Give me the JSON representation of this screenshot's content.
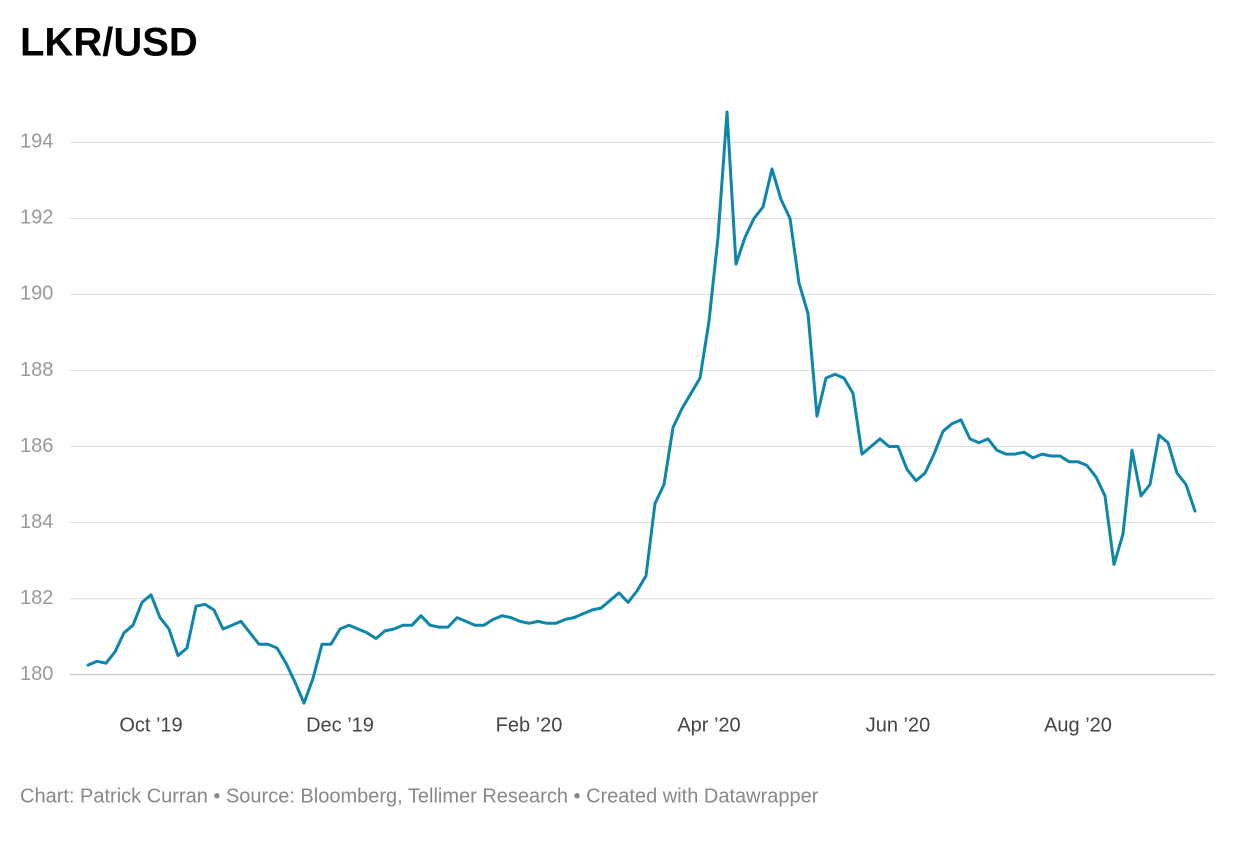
{
  "chart_data": {
    "type": "line",
    "title": "LKR/USD",
    "source": "Chart: Patrick Curran • Source: Bloomberg, Tellimer Research • Created with Datawrapper",
    "color": "#0e86ab",
    "grid": true,
    "ylim": [
      179.2,
      195.3
    ],
    "yticks": [
      180,
      182,
      184,
      186,
      188,
      190,
      192,
      194
    ],
    "categories": [
      null,
      null,
      null,
      null,
      null,
      null,
      null,
      "Oct ’19",
      null,
      null,
      null,
      null,
      null,
      null,
      null,
      null,
      null,
      null,
      null,
      null,
      null,
      null,
      null,
      null,
      null,
      null,
      null,
      null,
      "Dec ’19",
      null,
      null,
      null,
      null,
      null,
      null,
      null,
      null,
      null,
      null,
      null,
      null,
      null,
      null,
      null,
      null,
      null,
      null,
      null,
      null,
      "Feb ’20",
      null,
      null,
      null,
      null,
      null,
      null,
      null,
      null,
      null,
      null,
      null,
      null,
      null,
      null,
      null,
      null,
      null,
      null,
      null,
      "Apr ’20",
      null,
      null,
      null,
      null,
      null,
      null,
      null,
      null,
      null,
      null,
      null,
      null,
      null,
      null,
      null,
      null,
      null,
      null,
      null,
      null,
      "Jun ’20",
      null,
      null,
      null,
      null,
      null,
      null,
      null,
      null,
      null,
      null,
      null,
      null,
      null,
      null,
      null,
      null,
      null,
      null,
      null,
      "Aug ’20",
      null,
      null,
      null,
      null,
      null,
      null,
      null,
      null,
      null,
      null,
      null,
      null,
      null
    ],
    "values": [
      180.25,
      180.35,
      180.3,
      180.6,
      181.1,
      181.3,
      181.9,
      182.1,
      181.5,
      181.2,
      180.5,
      180.7,
      181.8,
      181.85,
      181.7,
      181.2,
      181.3,
      181.4,
      181.1,
      180.8,
      180.8,
      180.7,
      180.3,
      179.8,
      179.25,
      179.9,
      180.8,
      180.8,
      181.2,
      181.3,
      181.2,
      181.1,
      180.95,
      181.15,
      181.2,
      181.3,
      181.3,
      181.55,
      181.3,
      181.25,
      181.25,
      181.5,
      181.4,
      181.3,
      181.3,
      181.45,
      181.55,
      181.5,
      181.4,
      181.35,
      181.4,
      181.35,
      181.35,
      181.45,
      181.5,
      181.6,
      181.7,
      181.75,
      181.95,
      182.15,
      181.9,
      182.2,
      182.6,
      184.5,
      185.0,
      186.5,
      187.0,
      187.4,
      187.8,
      189.3,
      191.5,
      194.8,
      190.8,
      191.5,
      192.0,
      192.3,
      193.3,
      192.5,
      192.0,
      190.3,
      189.5,
      186.8,
      187.8,
      187.9,
      187.8,
      187.4,
      185.8,
      186.0,
      186.2,
      186.0,
      186.0,
      185.4,
      185.1,
      185.3,
      185.8,
      186.4,
      186.6,
      186.7,
      186.2,
      186.1,
      186.2,
      185.9,
      185.8,
      185.8,
      185.85,
      185.7,
      185.8,
      185.75,
      185.75,
      185.6,
      185.6,
      185.5,
      185.2,
      184.7,
      182.9,
      183.7,
      185.9,
      184.7,
      185.0,
      186.3,
      186.1,
      185.3,
      185.0,
      184.3
    ]
  }
}
